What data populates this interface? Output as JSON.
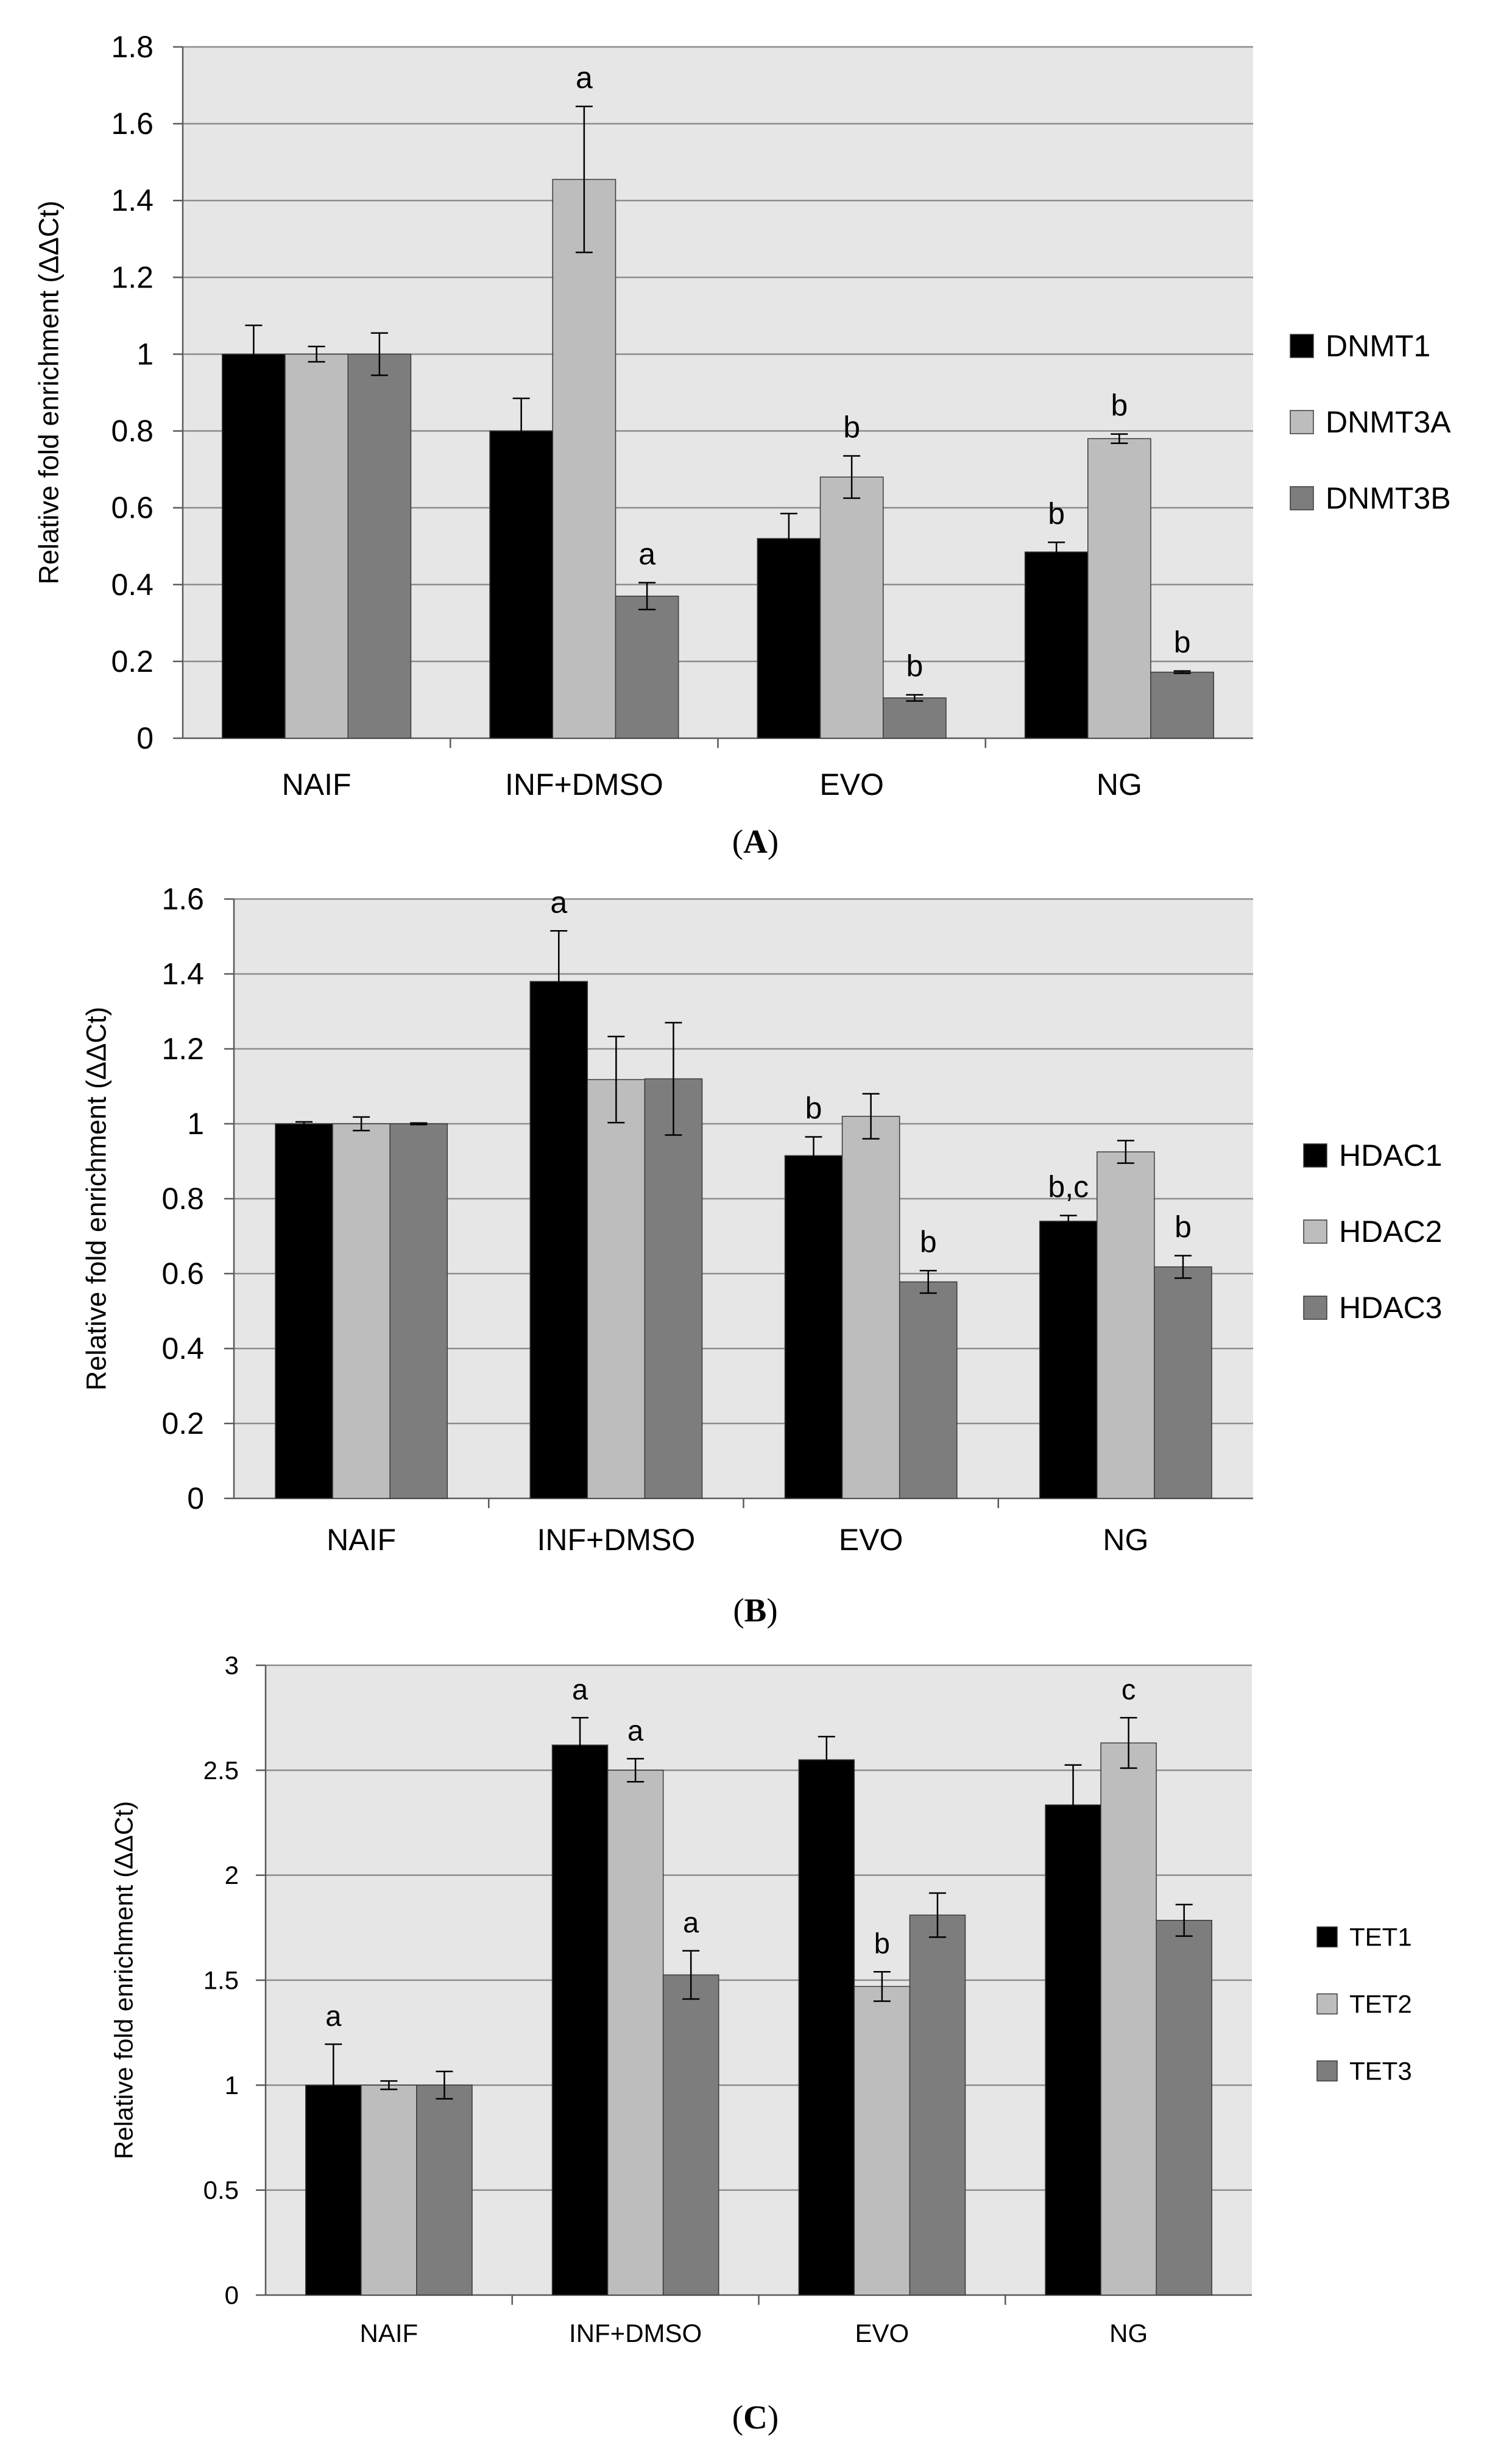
{
  "colors": {
    "plot_bg": "#e6e6e6",
    "grid": "#8c8c8c",
    "axis": "#5a5a5a",
    "text": "#000000",
    "series": [
      "#000000",
      "#bdbdbd",
      "#7d7d7d"
    ]
  },
  "chart_data": [
    {
      "type": "bar",
      "panel_label": "A",
      "title": "",
      "ylabel": "Relative fold enrichment (ΔΔCt)",
      "xlabel": "",
      "ylim": [
        0,
        1.8
      ],
      "yticks": [
        0,
        0.2,
        0.4,
        0.6,
        0.8,
        1,
        1.2,
        1.4,
        1.6,
        1.8
      ],
      "ytick_labels": [
        "0",
        "0.2",
        "0.4",
        "0.6",
        "0.8",
        "1",
        "1.2",
        "1.4",
        "1.6",
        "1.8"
      ],
      "grid": true,
      "legend_position": "right",
      "categories": [
        "NAIF",
        "INF+DMSO",
        "EVO",
        "NG"
      ],
      "series": [
        {
          "name": "DNMT1",
          "values": [
            1.0,
            0.8,
            0.52,
            0.485
          ],
          "errors": [
            0.075,
            0.085,
            0.065,
            0.025
          ],
          "annotations": [
            "",
            "",
            "",
            "b"
          ]
        },
        {
          "name": "DNMT3A",
          "values": [
            1.0,
            1.455,
            0.68,
            0.78
          ],
          "errors": [
            0.02,
            0.19,
            0.055,
            0.012
          ],
          "annotations": [
            "",
            "a",
            "b",
            "b"
          ]
        },
        {
          "name": "DNMT3B",
          "values": [
            1.0,
            0.37,
            0.105,
            0.172
          ],
          "errors": [
            0.055,
            0.035,
            0.008,
            0.003
          ],
          "annotations": [
            "",
            "a",
            "b",
            "b"
          ]
        }
      ]
    },
    {
      "type": "bar",
      "panel_label": "B",
      "title": "",
      "ylabel": "Relative fold enrichment (ΔΔCt)",
      "xlabel": "",
      "ylim": [
        0,
        1.6
      ],
      "yticks": [
        0,
        0.2,
        0.4,
        0.6,
        0.8,
        1,
        1.2,
        1.4,
        1.6
      ],
      "ytick_labels": [
        "0",
        "0.2",
        "0.4",
        "0.6",
        "0.8",
        "1",
        "1.2",
        "1.4",
        "1.6"
      ],
      "grid": true,
      "legend_position": "right",
      "categories": [
        "NAIF",
        "INF+DMSO",
        "EVO",
        "NG"
      ],
      "series": [
        {
          "name": "HDAC1",
          "values": [
            1.0,
            1.38,
            0.915,
            0.74
          ],
          "errors": [
            0.005,
            0.135,
            0.05,
            0.015
          ],
          "annotations": [
            "",
            "a",
            "b",
            "b,c"
          ]
        },
        {
          "name": "HDAC2",
          "values": [
            1.0,
            1.118,
            1.02,
            0.925
          ],
          "errors": [
            0.018,
            0.115,
            0.06,
            0.03
          ],
          "annotations": [
            "",
            "",
            "",
            ""
          ]
        },
        {
          "name": "HDAC3",
          "values": [
            1.0,
            1.12,
            0.578,
            0.618
          ],
          "errors": [
            0.002,
            0.15,
            0.03,
            0.03
          ],
          "annotations": [
            "",
            "",
            "b",
            "b"
          ]
        }
      ]
    },
    {
      "type": "bar",
      "panel_label": "C",
      "title": "",
      "ylabel": "Relative fold enrichment (ΔΔCt)",
      "xlabel": "",
      "ylim": [
        0,
        3
      ],
      "yticks": [
        0,
        0.5,
        1,
        1.5,
        2,
        2.5,
        3
      ],
      "ytick_labels": [
        "0",
        "0.5",
        "1",
        "1.5",
        "2",
        "2.5",
        "3"
      ],
      "grid": true,
      "legend_position": "right",
      "categories": [
        "NAIF",
        "INF+DMSO",
        "EVO",
        "NG"
      ],
      "series": [
        {
          "name": "TET1",
          "values": [
            1.0,
            2.62,
            2.55,
            2.335
          ],
          "errors": [
            0.195,
            0.13,
            0.11,
            0.19
          ],
          "annotations": [
            "a",
            "a",
            "",
            ""
          ]
        },
        {
          "name": "TET2",
          "values": [
            1.0,
            2.5,
            1.47,
            2.63
          ],
          "errors": [
            0.02,
            0.055,
            0.07,
            0.12
          ],
          "annotations": [
            "",
            "a",
            "b",
            "c"
          ]
        },
        {
          "name": "TET3",
          "values": [
            1.0,
            1.525,
            1.81,
            1.785
          ],
          "errors": [
            0.065,
            0.115,
            0.105,
            0.075
          ],
          "annotations": [
            "",
            "a",
            "",
            ""
          ]
        }
      ]
    }
  ]
}
